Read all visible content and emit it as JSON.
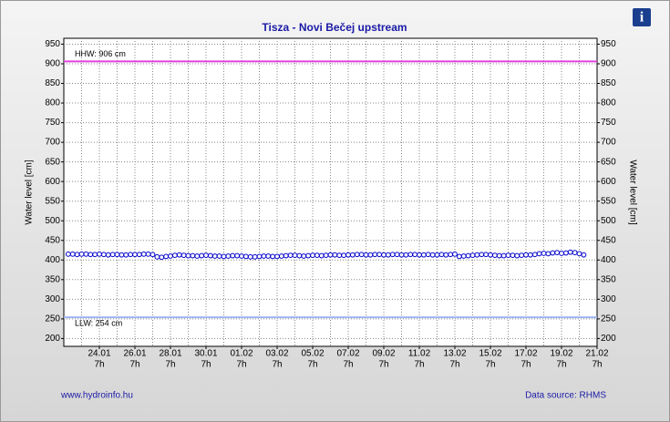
{
  "chart_data": {
    "type": "line",
    "title": "Tisza - Novi Bečej upstream",
    "y_label": "Water level [cm]",
    "footer_left": "www.hydroinfo.hu",
    "footer_right": "Data source: RHMS",
    "xtick_time": "7h",
    "xlim": [
      0,
      30
    ],
    "xticks": [
      {
        "value": 2,
        "label": "24.01"
      },
      {
        "value": 4,
        "label": "26.01"
      },
      {
        "value": 6,
        "label": "28.01"
      },
      {
        "value": 8,
        "label": "30.01"
      },
      {
        "value": 10,
        "label": "01.02"
      },
      {
        "value": 12,
        "label": "03.02"
      },
      {
        "value": 14,
        "label": "05.02"
      },
      {
        "value": 16,
        "label": "07.02"
      },
      {
        "value": 18,
        "label": "09.02"
      },
      {
        "value": 20,
        "label": "11.02"
      },
      {
        "value": 22,
        "label": "13.02"
      },
      {
        "value": 24,
        "label": "15.02"
      },
      {
        "value": 26,
        "label": "17.02"
      },
      {
        "value": 28,
        "label": "19.02"
      },
      {
        "value": 30,
        "label": "21.02"
      }
    ],
    "ylim": [
      180,
      965
    ],
    "yticks": [
      200,
      250,
      300,
      350,
      400,
      450,
      500,
      550,
      600,
      650,
      700,
      750,
      800,
      850,
      900,
      950
    ],
    "grid": true,
    "annotations": [
      {
        "label": "HHW: 906 cm",
        "value": 906,
        "color": "#e040e0"
      },
      {
        "label": "LLW: 254 cm",
        "value": 254,
        "color": "#9db4ef"
      }
    ],
    "series": [
      {
        "color": "#0000cc",
        "x": [
          0.25,
          0.5,
          0.75,
          1,
          1.25,
          1.5,
          1.75,
          2,
          2.25,
          2.5,
          2.75,
          3,
          3.25,
          3.5,
          3.75,
          4,
          4.25,
          4.5,
          4.75,
          5,
          5.25,
          5.5,
          5.75,
          6,
          6.25,
          6.5,
          6.75,
          7,
          7.25,
          7.5,
          7.75,
          8,
          8.25,
          8.5,
          8.75,
          9,
          9.25,
          9.5,
          9.75,
          10,
          10.25,
          10.5,
          10.75,
          11,
          11.25,
          11.5,
          11.75,
          12,
          12.25,
          12.5,
          12.75,
          13,
          13.25,
          13.5,
          13.75,
          14,
          14.25,
          14.5,
          14.75,
          15,
          15.25,
          15.5,
          15.75,
          16,
          16.25,
          16.5,
          16.75,
          17,
          17.25,
          17.5,
          17.75,
          18,
          18.25,
          18.5,
          18.75,
          19,
          19.25,
          19.5,
          19.75,
          20,
          20.25,
          20.5,
          20.75,
          21,
          21.25,
          21.5,
          21.75,
          22,
          22.25,
          22.5,
          22.75,
          23,
          23.25,
          23.5,
          23.75,
          24,
          24.25,
          24.5,
          24.75,
          25,
          25.25,
          25.5,
          25.75,
          26,
          26.25,
          26.5,
          26.75,
          27,
          27.25,
          27.5,
          27.75,
          28,
          28.25,
          28.5,
          28.75,
          29,
          29.25
        ],
        "values": [
          415,
          415,
          414,
          415,
          415,
          414,
          414,
          415,
          414,
          413,
          414,
          414,
          413,
          413,
          414,
          414,
          414,
          415,
          415,
          414,
          408,
          407,
          409,
          410,
          412,
          413,
          412,
          411,
          411,
          410,
          411,
          412,
          411,
          410,
          410,
          409,
          410,
          411,
          411,
          410,
          409,
          408,
          408,
          409,
          410,
          410,
          409,
          409,
          410,
          411,
          412,
          412,
          411,
          410,
          411,
          412,
          412,
          411,
          412,
          413,
          413,
          412,
          412,
          413,
          413,
          414,
          414,
          413,
          413,
          414,
          414,
          413,
          413,
          414,
          414,
          413,
          413,
          414,
          414,
          413,
          413,
          414,
          413,
          413,
          414,
          413,
          414,
          415,
          409,
          410,
          411,
          412,
          413,
          414,
          414,
          413,
          412,
          411,
          411,
          412,
          412,
          411,
          412,
          413,
          413,
          414,
          416,
          417,
          416,
          418,
          419,
          417,
          418,
          420,
          419,
          416,
          413
        ]
      }
    ]
  }
}
